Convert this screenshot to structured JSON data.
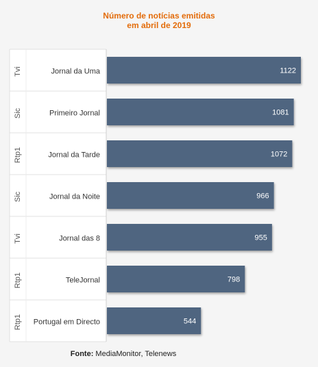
{
  "chart_data": {
    "type": "bar",
    "orientation": "horizontal",
    "title": [
      "Número de notícias emitidas",
      "em abril de 2019"
    ],
    "categories": [
      {
        "channel": "Tvi",
        "program": "Jornal da Uma"
      },
      {
        "channel": "Sic",
        "program": "Primeiro Jornal"
      },
      {
        "channel": "Rtp1",
        "program": "Jornal da Tarde"
      },
      {
        "channel": "Sic",
        "program": "Jornal da Noite"
      },
      {
        "channel": "Tvi",
        "program": "Jornal das 8"
      },
      {
        "channel": "Rtp1",
        "program": "TeleJornal"
      },
      {
        "channel": "Rtp1",
        "program": "Portugal em Directo"
      }
    ],
    "values": [
      1122,
      1081,
      1072,
      966,
      955,
      798,
      544
    ],
    "xlim": [
      0,
      1122
    ],
    "bar_color": "#4f6580",
    "grid": false
  },
  "source": {
    "label": "Fonte:",
    "text": "MediaMonitor, Telenews"
  }
}
